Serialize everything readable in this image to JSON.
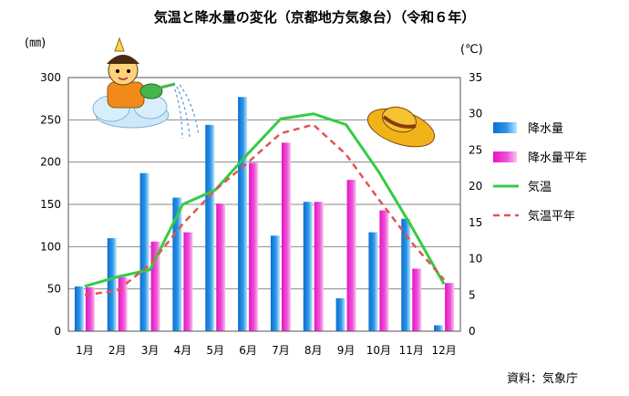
{
  "chart_data": {
    "type": "bar",
    "title": "気温と降水量の変化（京都地方気象台）（令和６年）",
    "source": "資料：気象庁",
    "y_left_unit": "(㎜)",
    "y_right_unit": "(℃)",
    "categories": [
      "1月",
      "2月",
      "3月",
      "4月",
      "5月",
      "6月",
      "7月",
      "8月",
      "9月",
      "10月",
      "11月",
      "12月"
    ],
    "y_left_ticks": [
      "0",
      "50",
      "100",
      "150",
      "200",
      "250",
      "300"
    ],
    "y_right_ticks": [
      "0",
      "5",
      "10",
      "15",
      "20",
      "25",
      "30",
      "35"
    ],
    "ylim_left": [
      0,
      300
    ],
    "ylim_right": [
      0,
      35
    ],
    "grid": "horizontal",
    "legend_position": "right",
    "series": [
      {
        "name": "降水量",
        "type": "bar",
        "axis": "left",
        "color": "#1a7fd6",
        "values": [
          53,
          110,
          187,
          158,
          244,
          277,
          113,
          153,
          39,
          117,
          133,
          7
        ]
      },
      {
        "name": "降水量平年",
        "type": "bar",
        "axis": "left",
        "color": "#e81cc8",
        "values": [
          52,
          64,
          106,
          117,
          151,
          199,
          223,
          153,
          179,
          143,
          74,
          57
        ]
      },
      {
        "name": "気温",
        "type": "line",
        "axis": "right",
        "color": "#33cc44",
        "values": [
          6.2,
          7.5,
          8.5,
          17.5,
          19.5,
          24.5,
          29.3,
          30,
          28.5,
          22,
          14.5,
          6.5
        ]
      },
      {
        "name": "気温平年",
        "type": "line",
        "axis": "right",
        "color": "#e05555",
        "dash": true,
        "values": [
          5,
          5.6,
          9.2,
          14.8,
          19.5,
          23.3,
          27.3,
          28.5,
          24.4,
          18.2,
          12.3,
          7.1
        ]
      }
    ]
  }
}
